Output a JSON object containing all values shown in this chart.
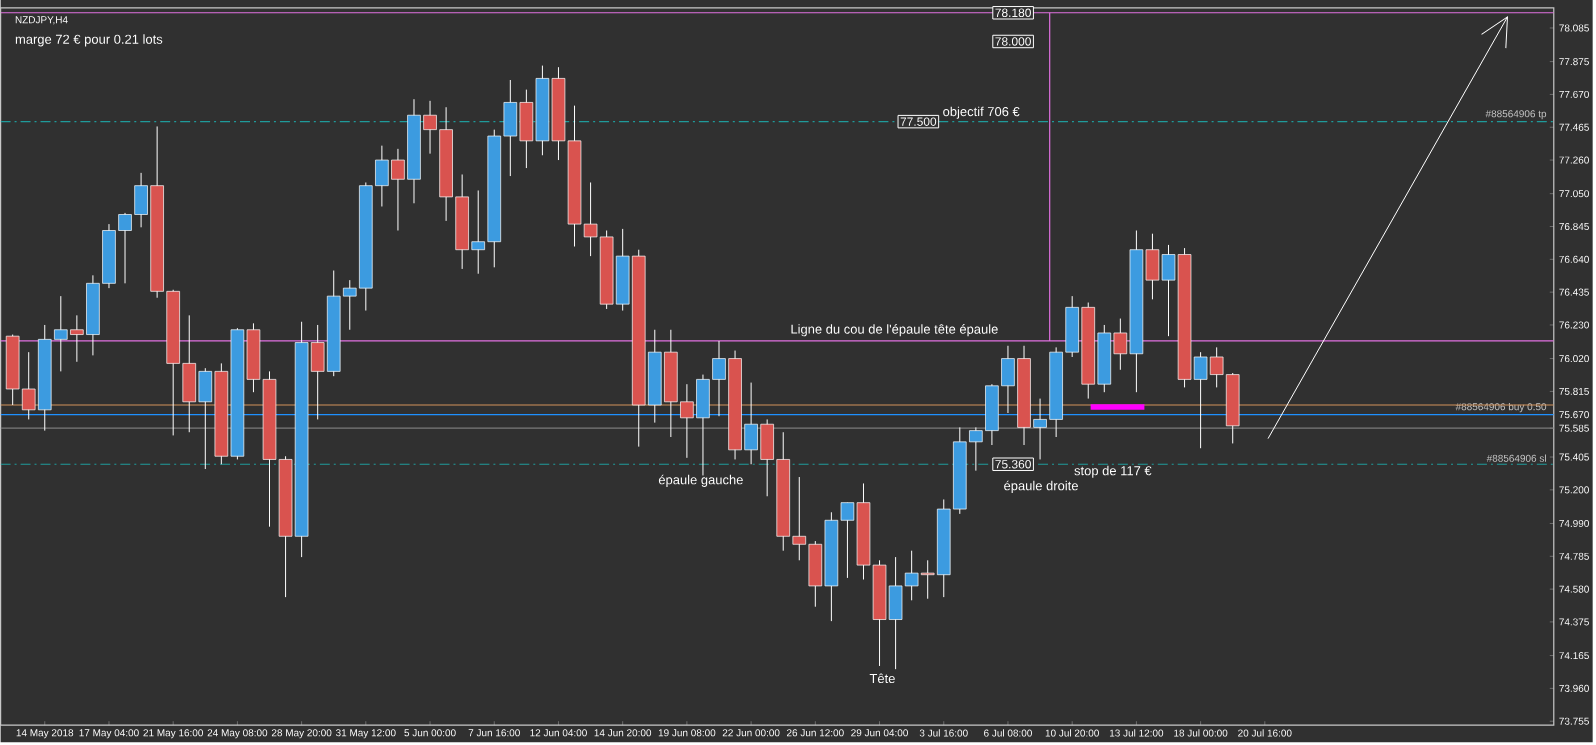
{
  "chart_data": {
    "type": "candlestick",
    "categories": [
      null,
      null,
      "14 May 2018",
      null,
      null,
      null,
      "17 May 04:00",
      null,
      null,
      null,
      "21 May 16:00",
      null,
      null,
      null,
      "24 May 08:00",
      null,
      null,
      null,
      "28 May 20:00",
      null,
      null,
      null,
      "31 May 12:00",
      null,
      null,
      null,
      "5 Jun 00:00",
      null,
      null,
      null,
      "7 Jun 16:00",
      null,
      null,
      null,
      "12 Jun 04:00",
      null,
      null,
      null,
      "14 Jun 20:00",
      null,
      null,
      null,
      "19 Jun 08:00",
      null,
      null,
      null,
      "22 Jun 00:00",
      null,
      null,
      null,
      "26 Jun 12:00",
      null,
      null,
      null,
      "29 Jun 04:00",
      null,
      null,
      null,
      "3 Jul 16:00",
      null,
      null,
      null,
      "6 Jul 08:00",
      null,
      null,
      null,
      "10 Jul 20:00",
      null,
      null,
      null,
      "13 Jul 12:00",
      null,
      null,
      null,
      "18 Jul 00:00",
      null,
      null,
      null,
      "20 Jul 16:00",
      null,
      null,
      null,
      null,
      null,
      null,
      null,
      null,
      null,
      null,
      null,
      null,
      null,
      null,
      null,
      null,
      null,
      null
    ],
    "ohlc": [
      [
        76.16,
        76.17,
        75.73,
        75.83
      ],
      [
        75.83,
        76.06,
        75.64,
        75.7
      ],
      [
        75.7,
        76.23,
        75.57,
        76.14
      ],
      [
        76.14,
        76.41,
        75.94,
        76.2
      ],
      [
        76.2,
        76.29,
        76.0,
        76.17
      ],
      [
        76.17,
        76.54,
        76.04,
        76.49
      ],
      [
        76.49,
        76.86,
        76.46,
        76.82
      ],
      [
        76.82,
        76.93,
        76.49,
        76.92
      ],
      [
        76.92,
        77.18,
        76.84,
        77.1
      ],
      [
        77.1,
        77.47,
        76.4,
        76.44
      ],
      [
        76.44,
        76.45,
        75.54,
        75.99
      ],
      [
        75.99,
        76.29,
        75.56,
        75.75
      ],
      [
        75.75,
        75.96,
        75.33,
        75.94
      ],
      [
        75.94,
        75.99,
        75.36,
        75.41
      ],
      [
        75.41,
        76.21,
        75.39,
        76.2
      ],
      [
        76.2,
        76.24,
        75.81,
        75.89
      ],
      [
        75.89,
        75.94,
        74.97,
        75.39
      ],
      [
        75.39,
        75.41,
        74.53,
        74.91
      ],
      [
        74.91,
        76.25,
        74.78,
        76.12
      ],
      [
        76.12,
        76.23,
        75.64,
        75.94
      ],
      [
        75.94,
        76.57,
        75.91,
        76.41
      ],
      [
        76.41,
        76.51,
        76.2,
        76.46
      ],
      [
        76.46,
        77.12,
        76.32,
        77.1
      ],
      [
        77.1,
        77.35,
        76.97,
        77.26
      ],
      [
        77.26,
        77.33,
        76.82,
        77.14
      ],
      [
        77.14,
        77.64,
        76.99,
        77.54
      ],
      [
        77.54,
        77.63,
        77.3,
        77.45
      ],
      [
        77.45,
        77.59,
        76.88,
        77.03
      ],
      [
        77.03,
        77.17,
        76.58,
        76.7
      ],
      [
        76.7,
        77.07,
        76.55,
        76.75
      ],
      [
        76.75,
        77.45,
        76.59,
        77.41
      ],
      [
        77.41,
        77.76,
        77.16,
        77.62
      ],
      [
        77.62,
        77.7,
        77.21,
        77.38
      ],
      [
        77.38,
        77.85,
        77.29,
        77.77
      ],
      [
        77.77,
        77.84,
        77.26,
        77.38
      ],
      [
        77.38,
        77.6,
        76.72,
        76.86
      ],
      [
        76.86,
        77.12,
        76.66,
        76.78
      ],
      [
        76.78,
        76.82,
        76.33,
        76.36
      ],
      [
        76.36,
        76.83,
        76.32,
        76.66
      ],
      [
        76.66,
        76.7,
        75.47,
        75.73
      ],
      [
        75.73,
        76.2,
        75.62,
        76.06
      ],
      [
        76.06,
        76.2,
        75.53,
        75.75
      ],
      [
        75.75,
        75.86,
        75.4,
        75.65
      ],
      [
        75.65,
        75.92,
        75.29,
        75.89
      ],
      [
        75.89,
        76.13,
        75.66,
        76.02
      ],
      [
        76.02,
        76.07,
        75.39,
        75.45
      ],
      [
        75.45,
        75.87,
        75.36,
        75.61
      ],
      [
        75.61,
        75.64,
        75.16,
        75.39
      ],
      [
        75.39,
        75.56,
        74.82,
        74.91
      ],
      [
        74.91,
        75.28,
        74.76,
        74.86
      ],
      [
        74.86,
        74.88,
        74.47,
        74.6
      ],
      [
        74.6,
        75.06,
        74.38,
        75.01
      ],
      [
        75.01,
        75.12,
        74.65,
        75.12
      ],
      [
        75.12,
        75.24,
        74.64,
        74.73
      ],
      [
        74.73,
        74.76,
        74.1,
        74.39
      ],
      [
        74.39,
        74.78,
        74.08,
        74.6
      ],
      [
        74.6,
        74.82,
        74.51,
        74.68
      ],
      [
        74.68,
        74.76,
        74.52,
        74.67
      ],
      [
        74.67,
        75.14,
        74.53,
        75.08
      ],
      [
        75.08,
        75.59,
        75.05,
        75.5
      ],
      [
        75.5,
        75.59,
        75.32,
        75.57
      ],
      [
        75.57,
        75.86,
        75.48,
        75.85
      ],
      [
        75.85,
        76.1,
        75.68,
        76.02
      ],
      [
        76.02,
        76.1,
        75.48,
        75.59
      ],
      [
        75.59,
        75.77,
        75.39,
        75.64
      ],
      [
        75.64,
        76.09,
        75.53,
        76.06
      ],
      [
        76.06,
        76.41,
        76.03,
        76.34
      ],
      [
        76.34,
        76.37,
        75.77,
        75.86
      ],
      [
        75.86,
        76.23,
        75.81,
        76.18
      ],
      [
        76.18,
        76.27,
        75.95,
        76.05
      ],
      [
        76.05,
        76.82,
        75.81,
        76.7
      ],
      [
        76.7,
        76.8,
        76.39,
        76.51
      ],
      [
        76.51,
        76.73,
        76.16,
        76.67
      ],
      [
        76.67,
        76.71,
        75.84,
        75.89
      ],
      [
        75.89,
        76.06,
        75.46,
        76.03
      ],
      [
        76.03,
        76.09,
        75.84,
        75.92
      ],
      [
        75.92,
        75.93,
        75.49,
        75.6
      ],
      null,
      null,
      null,
      null,
      null,
      null,
      null,
      null,
      null,
      null,
      null,
      null,
      null,
      null,
      null,
      null,
      null,
      null,
      null,
      null
    ],
    "colors": [
      "#d9534f",
      "#d9534f",
      "#3c9be0",
      "#3c9be0",
      "#d9534f",
      "#3c9be0",
      "#3c9be0",
      "#3c9be0",
      "#3c9be0",
      "#d9534f",
      "#d9534f",
      "#d9534f",
      "#3c9be0",
      "#d9534f",
      "#3c9be0",
      "#d9534f",
      "#d9534f",
      "#d9534f",
      "#3c9be0",
      "#d9534f",
      "#3c9be0",
      "#3c9be0",
      "#3c9be0",
      "#3c9be0",
      "#d9534f",
      "#3c9be0",
      "#d9534f",
      "#d9534f",
      "#d9534f",
      "#3c9be0",
      "#3c9be0",
      "#3c9be0",
      "#d9534f",
      "#3c9be0",
      "#d9534f",
      "#d9534f",
      "#d9534f",
      "#d9534f",
      "#3c9be0",
      "#d9534f",
      "#3c9be0",
      "#d9534f",
      "#d9534f",
      "#3c9be0",
      "#3c9be0",
      "#d9534f",
      "#3c9be0",
      "#d9534f",
      "#d9534f",
      "#d9534f",
      "#d9534f",
      "#3c9be0",
      "#3c9be0",
      "#d9534f",
      "#d9534f",
      "#3c9be0",
      "#3c9be0",
      "#d9534f",
      "#3c9be0",
      "#3c9be0",
      "#3c9be0",
      "#3c9be0",
      "#3c9be0",
      "#d9534f",
      "#3c9be0",
      "#3c9be0",
      "#3c9be0",
      "#d9534f",
      "#3c9be0",
      "#d9534f",
      "#3c9be0",
      "#d9534f",
      "#3c9be0",
      "#d9534f",
      "#3c9be0",
      "#d9534f",
      "#d9534f",
      null,
      null,
      null,
      null,
      null,
      null,
      null,
      null,
      null,
      null,
      null,
      null,
      null,
      null,
      null,
      null,
      null,
      null,
      null,
      null
    ],
    "ylim": [
      73.73,
      78.21
    ],
    "yticks": [
      {
        "value": 78.085,
        "label": "78.085"
      },
      {
        "value": 77.875,
        "label": "77.875"
      },
      {
        "value": 77.67,
        "label": "77.670"
      },
      {
        "value": 77.465,
        "label": "77.465"
      },
      {
        "value": 77.26,
        "label": "77.260"
      },
      {
        "value": 77.05,
        "label": "77.050"
      },
      {
        "value": 76.845,
        "label": "76.845"
      },
      {
        "value": 76.64,
        "label": "76.640"
      },
      {
        "value": 76.435,
        "label": "76.435"
      },
      {
        "value": 76.23,
        "label": "76.230"
      },
      {
        "value": 76.02,
        "label": "76.020"
      },
      {
        "value": 75.815,
        "label": "75.815"
      },
      {
        "value": 75.67,
        "label": "75.670"
      },
      {
        "value": 75.585,
        "label": "75.585"
      },
      {
        "value": 75.405,
        "label": "75.405"
      },
      {
        "value": 75.2,
        "label": "75.200"
      },
      {
        "value": 74.99,
        "label": "74.990"
      },
      {
        "value": 74.785,
        "label": "74.785"
      },
      {
        "value": 74.58,
        "label": "74.580"
      },
      {
        "value": 74.375,
        "label": "74.375"
      },
      {
        "value": 74.165,
        "label": "74.165"
      },
      {
        "value": 73.96,
        "label": "73.960"
      },
      {
        "value": 73.755,
        "label": "73.755"
      }
    ],
    "ref_lines": [
      {
        "axis": "y",
        "value": 77.5,
        "label": "#88564906 tp",
        "color": "#1f9a9a",
        "line_style": "dashed"
      },
      {
        "axis": "y",
        "value": 75.36,
        "label": "#88564906 sl",
        "color": "#1f9a9a",
        "line_style": "dashed"
      },
      {
        "axis": "y",
        "value": 75.67,
        "label": "#88564906 buy 0.50",
        "color": "#1e90ff",
        "line_style": "solid"
      },
      {
        "axis": "y",
        "value": 75.585,
        "color": "#7a7a7a",
        "line_style": "solid"
      },
      {
        "axis": "y",
        "value": 75.73,
        "color": "#d2915a",
        "line_style": "solid"
      },
      {
        "axis": "y",
        "value": 76.13,
        "color": "#e070e0",
        "line_style": "solid"
      },
      {
        "axis": "y",
        "value": 78.18,
        "color": "#e070e0",
        "line_style": "solid"
      }
    ],
    "annotations": [
      "NZDJPY,H4",
      "marge 72 € pour 0.21 lots",
      "Ligne du cou de l'épaule tête épaule",
      "épaule gauche",
      "Tête",
      "épaule droite",
      "stop de 117 €",
      "objectif 706 €",
      {
        "text": "77.500",
        "y": 77.5
      },
      "78.000",
      {
        "text": "78.180",
        "y": 78.18
      },
      {
        "text": "75.360",
        "y": 75.36
      }
    ]
  }
}
